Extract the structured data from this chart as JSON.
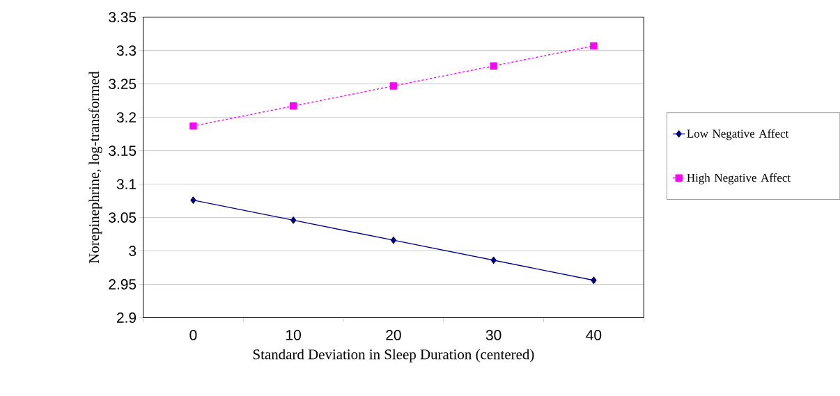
{
  "chart_data": {
    "type": "line",
    "xlabel": "Standard Deviation in Sleep Duration (centered)",
    "ylabel": "Norepinephrine, log-transformed",
    "categories": [
      "0",
      "10",
      "20",
      "30",
      "40"
    ],
    "series": [
      {
        "name": "Low Negative Affect",
        "color": "#000080",
        "marker": "diamond",
        "line_style": "solid",
        "values": [
          3.076,
          3.046,
          3.016,
          2.986,
          2.956
        ]
      },
      {
        "name": "High Negative Affect",
        "color": "#ff00ff",
        "marker": "square",
        "line_style": "dashed",
        "values": [
          3.187,
          3.217,
          3.247,
          3.277,
          3.307
        ]
      }
    ],
    "ylim": [
      2.9,
      3.35
    ],
    "yticks": [
      2.9,
      2.95,
      3,
      3.05,
      3.1,
      3.15,
      3.2,
      3.25,
      3.3,
      3.35
    ],
    "grid": "y",
    "legend": "right"
  }
}
